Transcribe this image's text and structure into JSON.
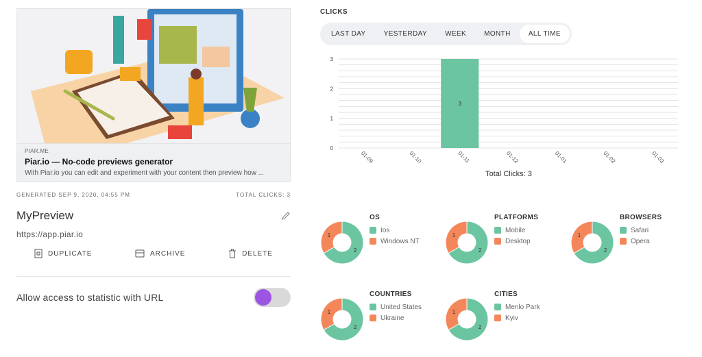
{
  "preview": {
    "domain": "PIAR.ME",
    "title": "Piar.io — No-code previews generator",
    "description": "With Piar.io you can edit and experiment with your content then preview how ..."
  },
  "meta": {
    "generated": "GENERATED SEP 9, 2020, 04:55 PM",
    "total_clicks": "TOTAL CLICKS: 3"
  },
  "name": "MyPreview",
  "url": "https://app.piar.io",
  "actions": {
    "duplicate": "DUPLICATE",
    "archive": "ARCHIVE",
    "delete": "DELETE"
  },
  "allow_label": "Allow access to statistic with URL",
  "toggle": {
    "on": true,
    "knob_color": "#9b55e0"
  },
  "clicks_label": "CLICKS",
  "tabs": [
    {
      "label": "LAST DAY",
      "active": false
    },
    {
      "label": "YESTERDAY",
      "active": false
    },
    {
      "label": "WEEK",
      "active": false
    },
    {
      "label": "MONTH",
      "active": false
    },
    {
      "label": "ALL TIME",
      "active": true
    }
  ],
  "total_clicks_text": "Total Clicks: 3",
  "colors": {
    "green": "#6cc5a1",
    "orange": "#f4875a"
  },
  "chart_data": {
    "type": "bar",
    "categories": [
      "01-09",
      "01-10",
      "01-11",
      "01-12",
      "01-01",
      "01-02",
      "01-03"
    ],
    "values": [
      0,
      0,
      3,
      0,
      0,
      0,
      0
    ],
    "ylim": [
      0,
      3
    ],
    "yticks": [
      0,
      1,
      2,
      3
    ],
    "bar_labels": [
      "",
      "",
      "3",
      "",
      "",
      "",
      ""
    ],
    "grid": true
  },
  "pies": [
    {
      "title": "OS",
      "legend": [
        "Ios",
        "Windows NT"
      ],
      "values": [
        2,
        1
      ]
    },
    {
      "title": "PLATFORMS",
      "legend": [
        "Mobile",
        "Desktop"
      ],
      "values": [
        2,
        1
      ]
    },
    {
      "title": "BROWSERS",
      "legend": [
        "Safari",
        "Opera"
      ],
      "values": [
        2,
        1
      ]
    },
    {
      "title": "COUNTRIES",
      "legend": [
        "United States",
        "Ukraine"
      ],
      "values": [
        2,
        1
      ]
    },
    {
      "title": "CITIES",
      "legend": [
        "Menlo Park",
        "Kyiv"
      ],
      "values": [
        2,
        1
      ]
    }
  ]
}
